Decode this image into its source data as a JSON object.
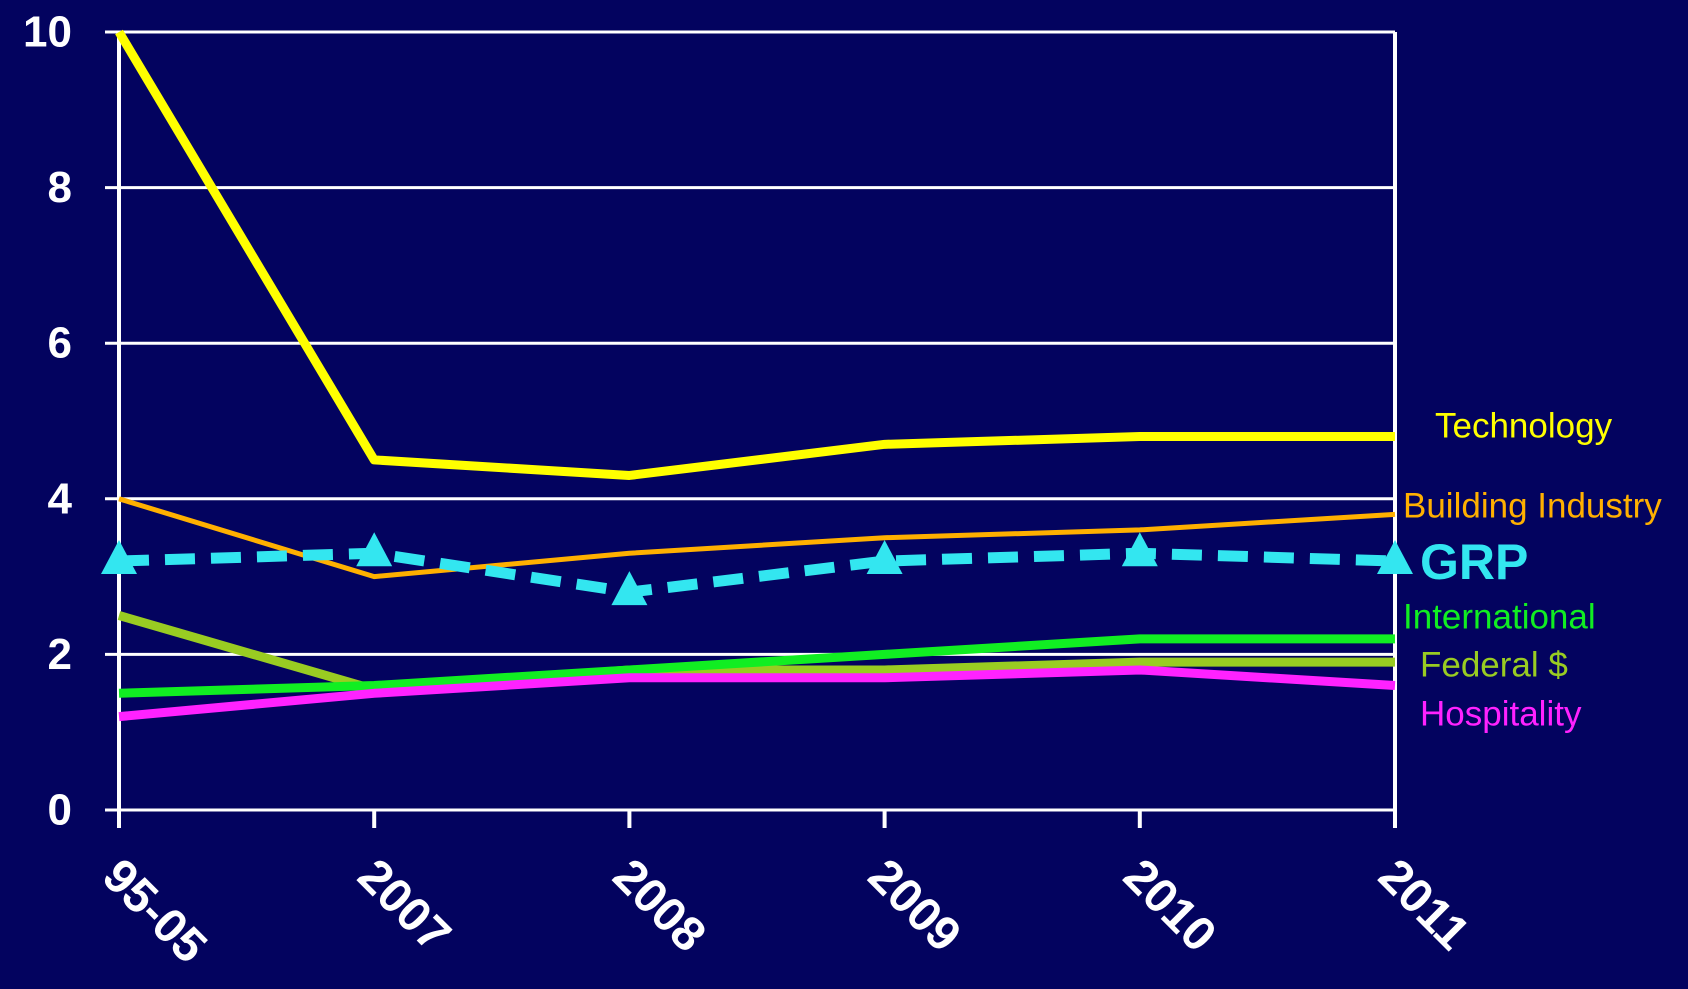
{
  "chart_data": {
    "type": "line",
    "categories": [
      "95-05",
      "2007",
      "2008",
      "2009",
      "2010",
      "2011"
    ],
    "ylim": [
      0,
      10
    ],
    "yticks": [
      "0",
      "2",
      "4",
      "6",
      "8",
      "10"
    ],
    "grid": "horizontal",
    "legend": "right",
    "series": [
      {
        "name": "Technology",
        "color": "#ffff00",
        "values": [
          10,
          4.5,
          4.3,
          4.7,
          4.8,
          4.8
        ],
        "style": "solid"
      },
      {
        "name": "Building Industry",
        "color": "#ffb000",
        "values": [
          4.0,
          3.0,
          3.3,
          3.5,
          3.6,
          3.8
        ],
        "style": "solid"
      },
      {
        "name": "GRP",
        "color": "#33e6f0",
        "values": [
          3.2,
          3.3,
          2.8,
          3.2,
          3.3,
          3.2
        ],
        "style": "dashed",
        "marker": "triangle"
      },
      {
        "name": "International",
        "color": "#11ee22",
        "values": [
          1.5,
          1.6,
          1.8,
          2.0,
          2.2,
          2.2
        ],
        "style": "solid"
      },
      {
        "name": "Federal $",
        "color": "#99cc22",
        "values": [
          2.5,
          1.55,
          1.8,
          1.8,
          1.9,
          1.9
        ],
        "style": "solid"
      },
      {
        "name": "Hospitality",
        "color": "#ff22ff",
        "values": [
          1.2,
          1.5,
          1.7,
          1.7,
          1.8,
          1.6
        ],
        "style": "solid"
      }
    ]
  }
}
